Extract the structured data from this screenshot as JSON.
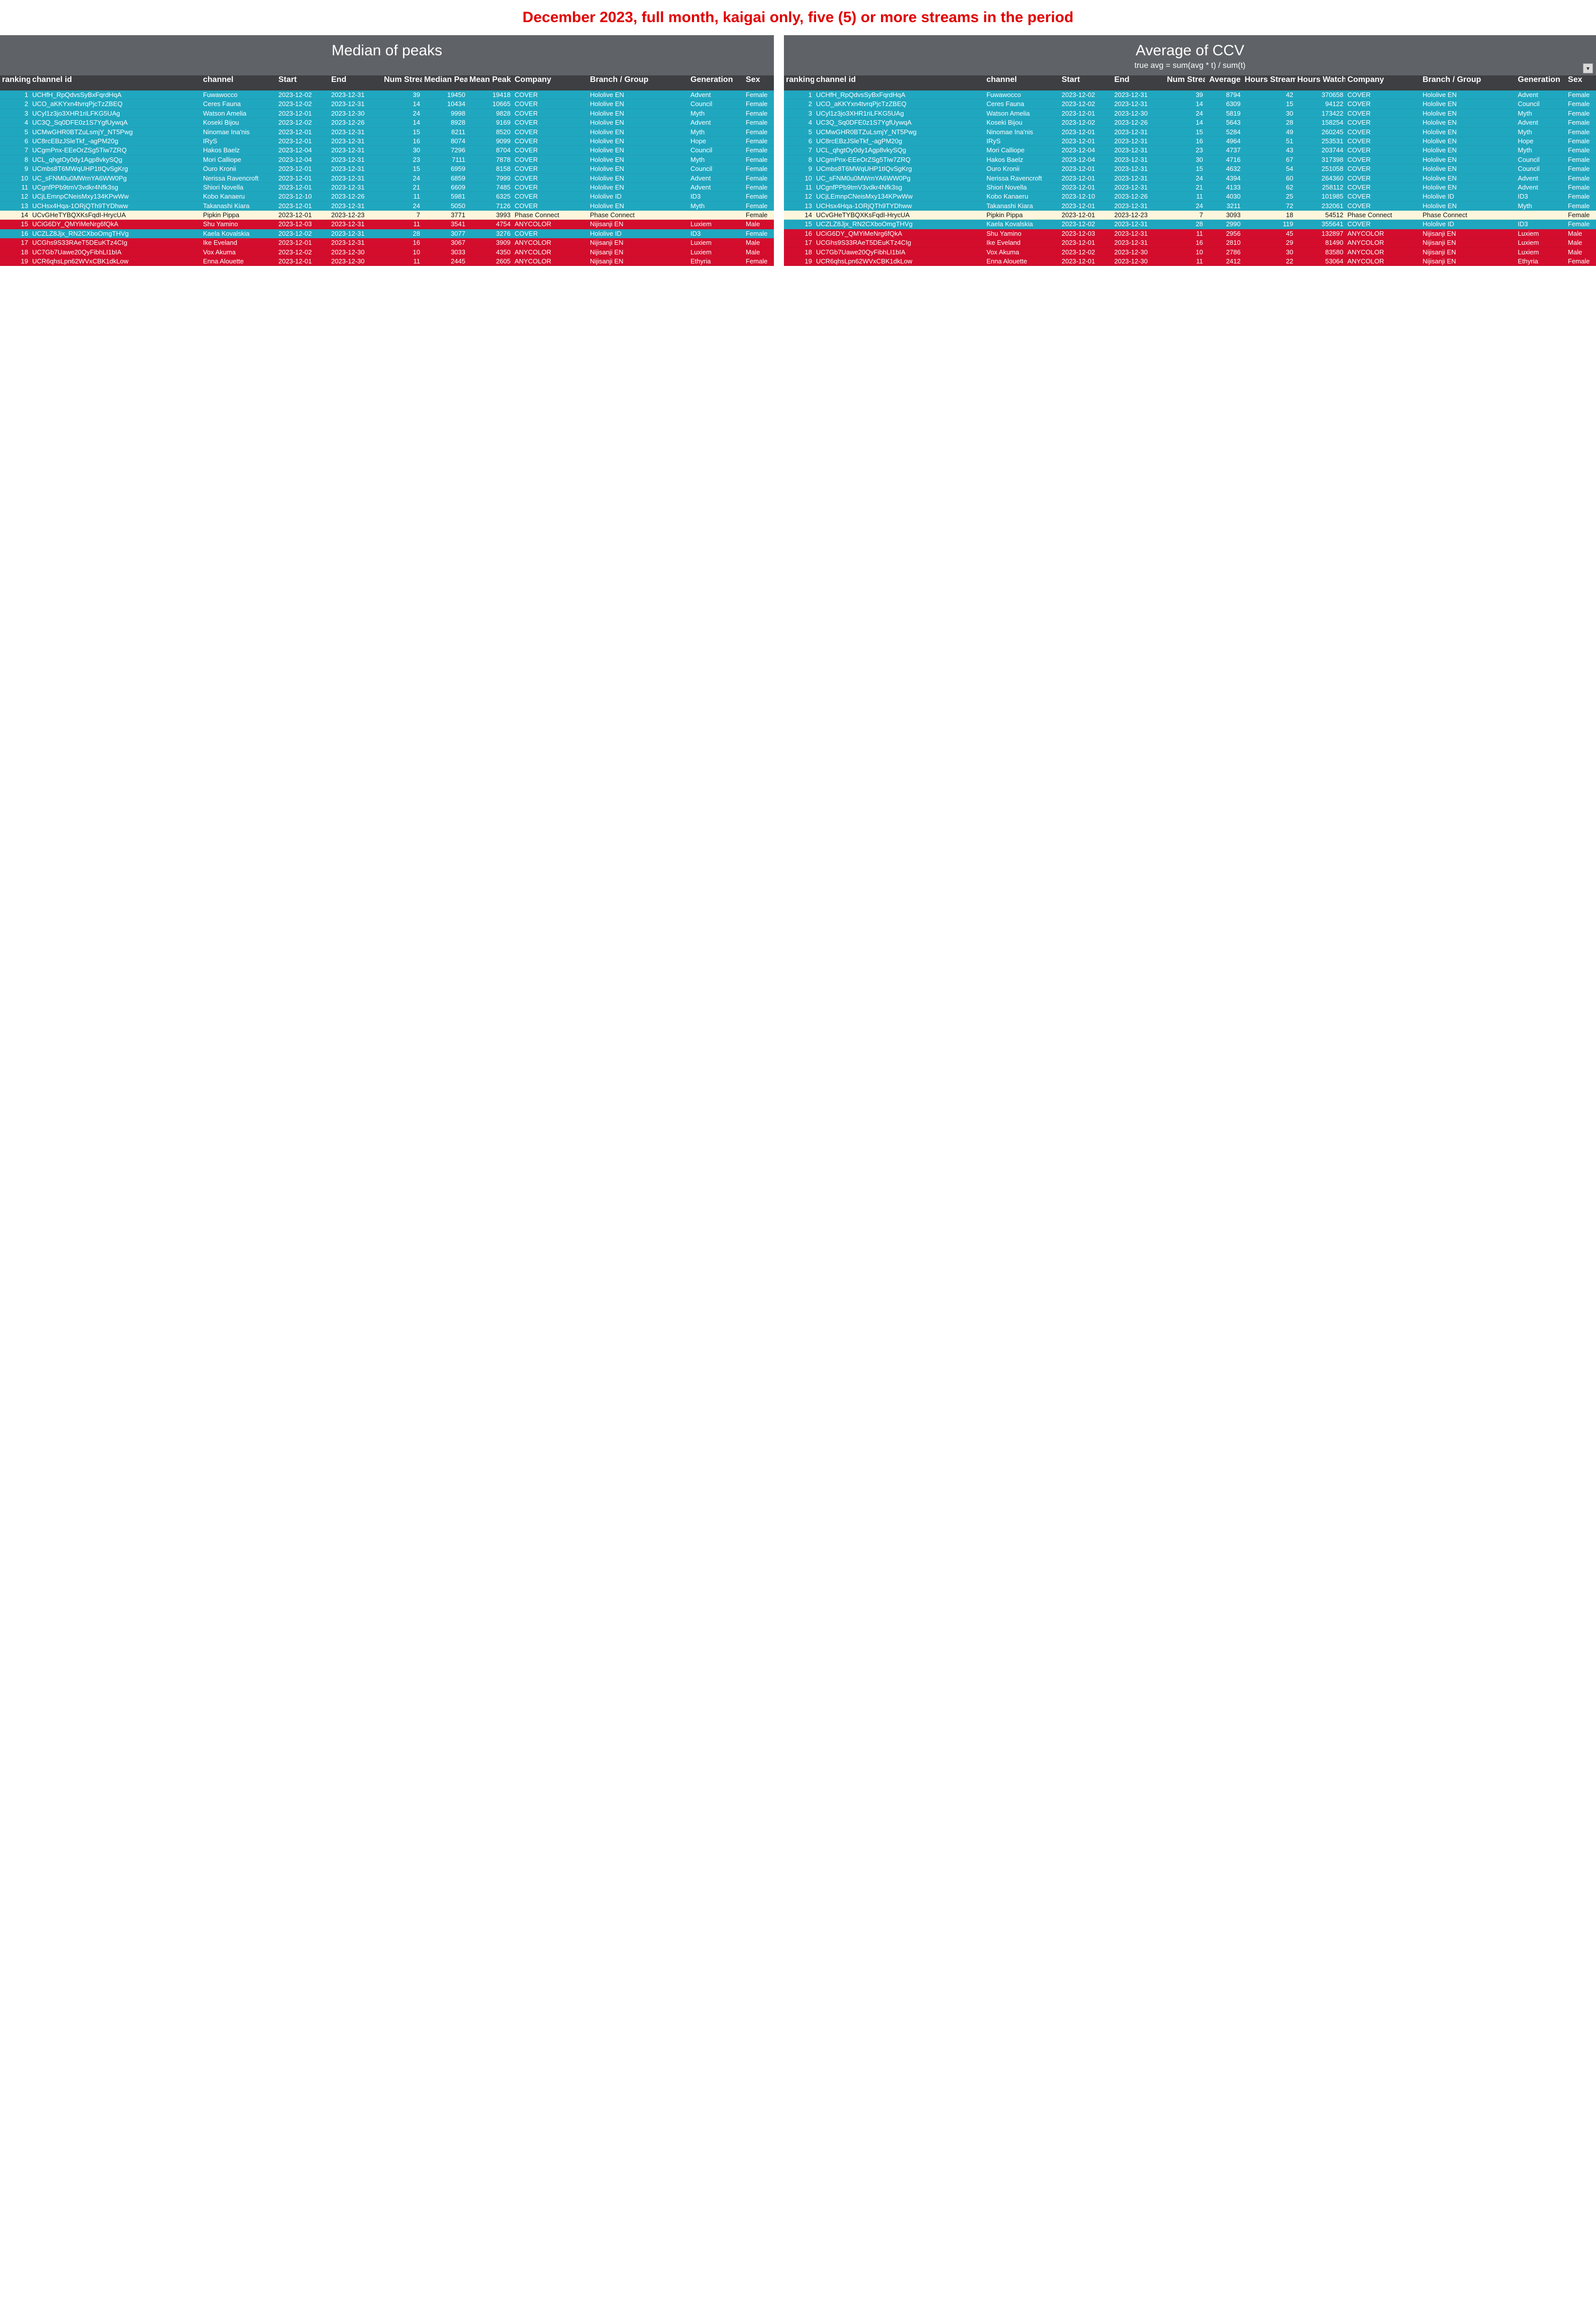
{
  "banner": "December 2023, full month, kaigai only, five (5) or more streams in the period",
  "left": {
    "title": "Median of peaks",
    "columns": [
      "ranking",
      "channel id",
      "channel",
      "Start",
      "End",
      "Num Streams",
      "Median Peak",
      "Mean Peak",
      "Company",
      "Branch / Group",
      "Generation",
      "Sex"
    ],
    "rows": [
      {
        "rank": "1",
        "id": "UCHfH_RpQdvsSyBxFqrdHqA",
        "ch": "Fuwawocco",
        "start": "2023-12-02",
        "end": "2023-12-31",
        "n": "39",
        "a": "19450",
        "b": "19418",
        "co": "COVER",
        "br": "Hololive EN",
        "gen": "Advent",
        "sex": "Female",
        "cls": "hololive"
      },
      {
        "rank": "2",
        "id": "UCO_aKKYxn4tvrqPjcTzZBEQ",
        "ch": "Ceres Fauna",
        "start": "2023-12-02",
        "end": "2023-12-31",
        "n": "14",
        "a": "10434",
        "b": "10665",
        "co": "COVER",
        "br": "Hololive EN",
        "gen": "Council",
        "sex": "Female",
        "cls": "hololive"
      },
      {
        "rank": "3",
        "id": "UCyl1z3jo3XHR1riLFKG5UAg",
        "ch": "Watson Amelia",
        "start": "2023-12-01",
        "end": "2023-12-30",
        "n": "24",
        "a": "9998",
        "b": "9828",
        "co": "COVER",
        "br": "Hololive EN",
        "gen": "Myth",
        "sex": "Female",
        "cls": "hololive"
      },
      {
        "rank": "4",
        "id": "UC3Q_Sq0DFE0z1S7YgfUywqA",
        "ch": "Koseki Bijou",
        "start": "2023-12-02",
        "end": "2023-12-26",
        "n": "14",
        "a": "8928",
        "b": "9169",
        "co": "COVER",
        "br": "Hololive EN",
        "gen": "Advent",
        "sex": "Female",
        "cls": "hololive"
      },
      {
        "rank": "5",
        "id": "UCMwGHR0BTZuLsmjY_NT5Pwg",
        "ch": "Ninomae Ina'nis",
        "start": "2023-12-01",
        "end": "2023-12-31",
        "n": "15",
        "a": "8211",
        "b": "8520",
        "co": "COVER",
        "br": "Hololive EN",
        "gen": "Myth",
        "sex": "Female",
        "cls": "hololive"
      },
      {
        "rank": "6",
        "id": "UC8rcEBzJSleTkf_-agPM20g",
        "ch": "IRyS",
        "start": "2023-12-01",
        "end": "2023-12-31",
        "n": "16",
        "a": "8074",
        "b": "9099",
        "co": "COVER",
        "br": "Hololive EN",
        "gen": "Hope",
        "sex": "Female",
        "cls": "hololive"
      },
      {
        "rank": "7",
        "id": "UCgmPnx-EEeOrZSg5Tiw7ZRQ",
        "ch": "Hakos Baelz",
        "start": "2023-12-04",
        "end": "2023-12-31",
        "n": "30",
        "a": "7296",
        "b": "8704",
        "co": "COVER",
        "br": "Hololive EN",
        "gen": "Council",
        "sex": "Female",
        "cls": "hololive"
      },
      {
        "rank": "8",
        "id": "UCL_qhgtOy0dy1Agp8vkySQg",
        "ch": "Mori Calliope",
        "start": "2023-12-04",
        "end": "2023-12-31",
        "n": "23",
        "a": "7111",
        "b": "7878",
        "co": "COVER",
        "br": "Hololive EN",
        "gen": "Myth",
        "sex": "Female",
        "cls": "hololive"
      },
      {
        "rank": "9",
        "id": "UCmbs8T6MWqUHP1tIQvSgKrg",
        "ch": "Ouro Kronii",
        "start": "2023-12-01",
        "end": "2023-12-31",
        "n": "15",
        "a": "6959",
        "b": "8158",
        "co": "COVER",
        "br": "Hololive EN",
        "gen": "Council",
        "sex": "Female",
        "cls": "hololive"
      },
      {
        "rank": "10",
        "id": "UC_sFNM0u0MWrnYA6WW0Pg",
        "ch": "Nerissa Ravencroft",
        "start": "2023-12-01",
        "end": "2023-12-31",
        "n": "24",
        "a": "6859",
        "b": "7999",
        "co": "COVER",
        "br": "Hololive EN",
        "gen": "Advent",
        "sex": "Female",
        "cls": "hololive"
      },
      {
        "rank": "11",
        "id": "UCgnfPPb9tmV3vdkr4Nfk3sg",
        "ch": "Shiori Novella",
        "start": "2023-12-01",
        "end": "2023-12-31",
        "n": "21",
        "a": "6609",
        "b": "7485",
        "co": "COVER",
        "br": "Hololive EN",
        "gen": "Advent",
        "sex": "Female",
        "cls": "hololive"
      },
      {
        "rank": "12",
        "id": "UCjLEmnpCNeisMxy134KPwWw",
        "ch": "Kobo Kanaeru",
        "start": "2023-12-10",
        "end": "2023-12-26",
        "n": "11",
        "a": "5981",
        "b": "6325",
        "co": "COVER",
        "br": "Hololive ID",
        "gen": "ID3",
        "sex": "Female",
        "cls": "hololive"
      },
      {
        "rank": "13",
        "id": "UCHsx4Hqa-1ORjQTh9TYDhww",
        "ch": "Takanashi Kiara",
        "start": "2023-12-01",
        "end": "2023-12-31",
        "n": "24",
        "a": "5050",
        "b": "7126",
        "co": "COVER",
        "br": "Hololive EN",
        "gen": "Myth",
        "sex": "Female",
        "cls": "hololive"
      },
      {
        "rank": "14",
        "id": "UCvGHeTYBQXKsFqdI-HrycUA",
        "ch": "Pipkin Pippa",
        "start": "2023-12-01",
        "end": "2023-12-23",
        "n": "7",
        "a": "3771",
        "b": "3993",
        "co": "Phase Connect",
        "br": "Phase Connect",
        "gen": "",
        "sex": "Female",
        "cls": "other"
      },
      {
        "rank": "15",
        "id": "UCiG6DY_QMYiMeNrg6fQkA",
        "ch": "Shu Yamino",
        "start": "2023-12-03",
        "end": "2023-12-31",
        "n": "11",
        "a": "3541",
        "b": "4754",
        "co": "ANYCOLOR",
        "br": "Nijisanji EN",
        "gen": "Luxiem",
        "sex": "Male",
        "cls": "nijisanji"
      },
      {
        "rank": "16",
        "id": "UCZLZ8Jjx_RN2CXboOmgTHVg",
        "ch": "Kaela Kovalskia",
        "start": "2023-12-02",
        "end": "2023-12-31",
        "n": "28",
        "a": "3077",
        "b": "3276",
        "co": "COVER",
        "br": "Hololive ID",
        "gen": "ID3",
        "sex": "Female",
        "cls": "hololive"
      },
      {
        "rank": "17",
        "id": "UCGhs9S33RAeT5DEuKTz4CIg",
        "ch": "Ike Eveland",
        "start": "2023-12-01",
        "end": "2023-12-31",
        "n": "16",
        "a": "3067",
        "b": "3909",
        "co": "ANYCOLOR",
        "br": "Nijisanji EN",
        "gen": "Luxiem",
        "sex": "Male",
        "cls": "nijisanji"
      },
      {
        "rank": "18",
        "id": "UC7Gb7Uawe20QyFibhLI1bIA",
        "ch": "Vox Akuma",
        "start": "2023-12-02",
        "end": "2023-12-30",
        "n": "10",
        "a": "3033",
        "b": "4350",
        "co": "ANYCOLOR",
        "br": "Nijisanji EN",
        "gen": "Luxiem",
        "sex": "Male",
        "cls": "nijisanji"
      },
      {
        "rank": "19",
        "id": "UCR6qhsLpn62WVxCBK1dkLow",
        "ch": "Enna Alouette",
        "start": "2023-12-01",
        "end": "2023-12-30",
        "n": "11",
        "a": "2445",
        "b": "2605",
        "co": "ANYCOLOR",
        "br": "Nijisanji EN",
        "gen": "Ethyria",
        "sex": "Female",
        "cls": "nijisanji"
      }
    ]
  },
  "right": {
    "title": "Average of CCV",
    "subtitle": "true avg = sum(avg * t) / sum(t)",
    "columns": [
      "ranking",
      "channel id",
      "channel",
      "Start",
      "End",
      "Num Streams",
      "Average",
      "Hours Streamed",
      "Hours Watched",
      "Company",
      "Branch / Group",
      "Generation",
      "Sex"
    ],
    "rows": [
      {
        "rank": "1",
        "id": "UCHfH_RpQdvsSyBxFqrdHqA",
        "ch": "Fuwawocco",
        "start": "2023-12-02",
        "end": "2023-12-31",
        "n": "39",
        "avg": "8794",
        "hs": "42",
        "hw": "370658",
        "co": "COVER",
        "br": "Hololive EN",
        "gen": "Advent",
        "sex": "Female",
        "cls": "hololive"
      },
      {
        "rank": "2",
        "id": "UCO_aKKYxn4tvrqPjcTzZBEQ",
        "ch": "Ceres Fauna",
        "start": "2023-12-02",
        "end": "2023-12-31",
        "n": "14",
        "avg": "6309",
        "hs": "15",
        "hw": "94122",
        "co": "COVER",
        "br": "Hololive EN",
        "gen": "Council",
        "sex": "Female",
        "cls": "hololive"
      },
      {
        "rank": "3",
        "id": "UCyl1z3jo3XHR1riLFKG5UAg",
        "ch": "Watson Amelia",
        "start": "2023-12-01",
        "end": "2023-12-30",
        "n": "24",
        "avg": "5819",
        "hs": "30",
        "hw": "173422",
        "co": "COVER",
        "br": "Hololive EN",
        "gen": "Myth",
        "sex": "Female",
        "cls": "hololive"
      },
      {
        "rank": "4",
        "id": "UC3Q_Sq0DFE0z1S7YgfUywqA",
        "ch": "Koseki Bijou",
        "start": "2023-12-02",
        "end": "2023-12-26",
        "n": "14",
        "avg": "5643",
        "hs": "28",
        "hw": "158254",
        "co": "COVER",
        "br": "Hololive EN",
        "gen": "Advent",
        "sex": "Female",
        "cls": "hololive"
      },
      {
        "rank": "5",
        "id": "UCMwGHR0BTZuLsmjY_NT5Pwg",
        "ch": "Ninomae Ina'nis",
        "start": "2023-12-01",
        "end": "2023-12-31",
        "n": "15",
        "avg": "5284",
        "hs": "49",
        "hw": "260245",
        "co": "COVER",
        "br": "Hololive EN",
        "gen": "Myth",
        "sex": "Female",
        "cls": "hololive"
      },
      {
        "rank": "6",
        "id": "UC8rcEBzJSleTkf_-agPM20g",
        "ch": "IRyS",
        "start": "2023-12-01",
        "end": "2023-12-31",
        "n": "16",
        "avg": "4964",
        "hs": "51",
        "hw": "253531",
        "co": "COVER",
        "br": "Hololive EN",
        "gen": "Hope",
        "sex": "Female",
        "cls": "hololive"
      },
      {
        "rank": "7",
        "id": "UCL_qhgtOy0dy1Agp8vkySQg",
        "ch": "Mori Calliope",
        "start": "2023-12-04",
        "end": "2023-12-31",
        "n": "23",
        "avg": "4737",
        "hs": "43",
        "hw": "203744",
        "co": "COVER",
        "br": "Hololive EN",
        "gen": "Myth",
        "sex": "Female",
        "cls": "hololive"
      },
      {
        "rank": "8",
        "id": "UCgmPnx-EEeOrZSg5Tiw7ZRQ",
        "ch": "Hakos Baelz",
        "start": "2023-12-04",
        "end": "2023-12-31",
        "n": "30",
        "avg": "4716",
        "hs": "67",
        "hw": "317398",
        "co": "COVER",
        "br": "Hololive EN",
        "gen": "Council",
        "sex": "Female",
        "cls": "hololive"
      },
      {
        "rank": "9",
        "id": "UCmbs8T6MWqUHP1tIQvSgKrg",
        "ch": "Ouro Kronii",
        "start": "2023-12-01",
        "end": "2023-12-31",
        "n": "15",
        "avg": "4632",
        "hs": "54",
        "hw": "251058",
        "co": "COVER",
        "br": "Hololive EN",
        "gen": "Council",
        "sex": "Female",
        "cls": "hololive"
      },
      {
        "rank": "10",
        "id": "UC_sFNM0u0MWrnYA6WW0Pg",
        "ch": "Nerissa Ravencroft",
        "start": "2023-12-01",
        "end": "2023-12-31",
        "n": "24",
        "avg": "4394",
        "hs": "60",
        "hw": "264360",
        "co": "COVER",
        "br": "Hololive EN",
        "gen": "Advent",
        "sex": "Female",
        "cls": "hololive"
      },
      {
        "rank": "11",
        "id": "UCgnfPPb9tmV3vdkr4Nfk3sg",
        "ch": "Shiori Novella",
        "start": "2023-12-01",
        "end": "2023-12-31",
        "n": "21",
        "avg": "4133",
        "hs": "62",
        "hw": "258112",
        "co": "COVER",
        "br": "Hololive EN",
        "gen": "Advent",
        "sex": "Female",
        "cls": "hololive"
      },
      {
        "rank": "12",
        "id": "UCjLEmnpCNeisMxy134KPwWw",
        "ch": "Kobo Kanaeru",
        "start": "2023-12-10",
        "end": "2023-12-26",
        "n": "11",
        "avg": "4030",
        "hs": "25",
        "hw": "101985",
        "co": "COVER",
        "br": "Hololive ID",
        "gen": "ID3",
        "sex": "Female",
        "cls": "hololive"
      },
      {
        "rank": "13",
        "id": "UCHsx4Hqa-1ORjQTh9TYDhww",
        "ch": "Takanashi Kiara",
        "start": "2023-12-01",
        "end": "2023-12-31",
        "n": "24",
        "avg": "3211",
        "hs": "72",
        "hw": "232061",
        "co": "COVER",
        "br": "Hololive EN",
        "gen": "Myth",
        "sex": "Female",
        "cls": "hololive"
      },
      {
        "rank": "14",
        "id": "UCvGHeTYBQXKsFqdI-HrycUA",
        "ch": "Pipkin Pippa",
        "start": "2023-12-01",
        "end": "2023-12-23",
        "n": "7",
        "avg": "3093",
        "hs": "18",
        "hw": "54512",
        "co": "Phase Connect",
        "br": "Phase Connect",
        "gen": "",
        "sex": "Female",
        "cls": "other"
      },
      {
        "rank": "15",
        "id": "UCZLZ8Jjx_RN2CXboOmgTHVg",
        "ch": "Kaela Kovalskia",
        "start": "2023-12-02",
        "end": "2023-12-31",
        "n": "28",
        "avg": "2990",
        "hs": "119",
        "hw": "355641",
        "co": "COVER",
        "br": "Hololive ID",
        "gen": "ID3",
        "sex": "Female",
        "cls": "hololive"
      },
      {
        "rank": "16",
        "id": "UCiG6DY_QMYiMeNrg6fQkA",
        "ch": "Shu Yamino",
        "start": "2023-12-03",
        "end": "2023-12-31",
        "n": "11",
        "avg": "2956",
        "hs": "45",
        "hw": "132897",
        "co": "ANYCOLOR",
        "br": "Nijisanji EN",
        "gen": "Luxiem",
        "sex": "Male",
        "cls": "nijisanji"
      },
      {
        "rank": "17",
        "id": "UCGhs9S33RAeT5DEuKTz4CIg",
        "ch": "Ike Eveland",
        "start": "2023-12-01",
        "end": "2023-12-31",
        "n": "16",
        "avg": "2810",
        "hs": "29",
        "hw": "81490",
        "co": "ANYCOLOR",
        "br": "Nijisanji EN",
        "gen": "Luxiem",
        "sex": "Male",
        "cls": "nijisanji"
      },
      {
        "rank": "18",
        "id": "UC7Gb7Uawe20QyFibhLI1bIA",
        "ch": "Vox Akuma",
        "start": "2023-12-02",
        "end": "2023-12-30",
        "n": "10",
        "avg": "2786",
        "hs": "30",
        "hw": "83580",
        "co": "ANYCOLOR",
        "br": "Nijisanji EN",
        "gen": "Luxiem",
        "sex": "Male",
        "cls": "nijisanji"
      },
      {
        "rank": "19",
        "id": "UCR6qhsLpn62WVxCBK1dkLow",
        "ch": "Enna Alouette",
        "start": "2023-12-01",
        "end": "2023-12-30",
        "n": "11",
        "avg": "2412",
        "hs": "22",
        "hw": "53064",
        "co": "ANYCOLOR",
        "br": "Nijisanji EN",
        "gen": "Ethyria",
        "sex": "Female",
        "cls": "nijisanji"
      }
    ]
  },
  "colors": {
    "hololive": "#20a7c0",
    "nijisanji": "#d40d2d",
    "indie": "#f6c90e",
    "other": "#fdf6dc",
    "banner": "#e00000",
    "header": "#5f6266"
  }
}
